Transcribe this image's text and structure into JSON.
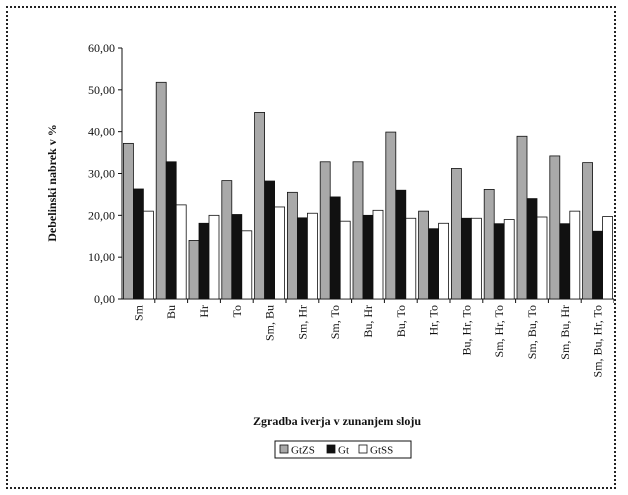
{
  "chart_data": {
    "type": "bar",
    "ylabel": "Debelinski nabrek v %",
    "xlabel": "Zgradba iverja v zunanjem sloju",
    "ylim": [
      0,
      60
    ],
    "yticks": [
      "0,00",
      "10,00",
      "20,00",
      "30,00",
      "40,00",
      "50,00",
      "60,00"
    ],
    "grid": false,
    "legend_position": "bottom",
    "categories": [
      "Sm",
      "Bu",
      "Hr",
      "To",
      "Sm, Bu",
      "Sm, Hr",
      "Sm, To",
      "Bu, Hr",
      "Bu, To",
      "Hr, To",
      "Bu, Hr, To",
      "Sm, Hr, To",
      "Sm, Bu, To",
      "Sm, Bu, Hr",
      "Sm, Bu, Hr, To"
    ],
    "series": [
      {
        "name": "GtZS",
        "color": "#a9a9a9",
        "values": [
          37.2,
          51.8,
          14.0,
          28.3,
          44.6,
          25.5,
          32.8,
          32.8,
          39.9,
          21.0,
          31.2,
          26.2,
          38.9,
          34.2,
          32.6
        ]
      },
      {
        "name": "Gt",
        "color": "#111111",
        "values": [
          26.3,
          32.8,
          18.1,
          20.2,
          28.2,
          19.4,
          24.4,
          20.0,
          26.0,
          16.8,
          19.3,
          18.0,
          24.0,
          18.0,
          16.2
        ]
      },
      {
        "name": "GtSS",
        "color": "#ffffff",
        "values": [
          21.0,
          22.5,
          20.0,
          16.3,
          22.0,
          20.5,
          18.6,
          21.2,
          19.3,
          18.1,
          19.3,
          19.0,
          19.6,
          21.0,
          19.7
        ]
      }
    ]
  }
}
